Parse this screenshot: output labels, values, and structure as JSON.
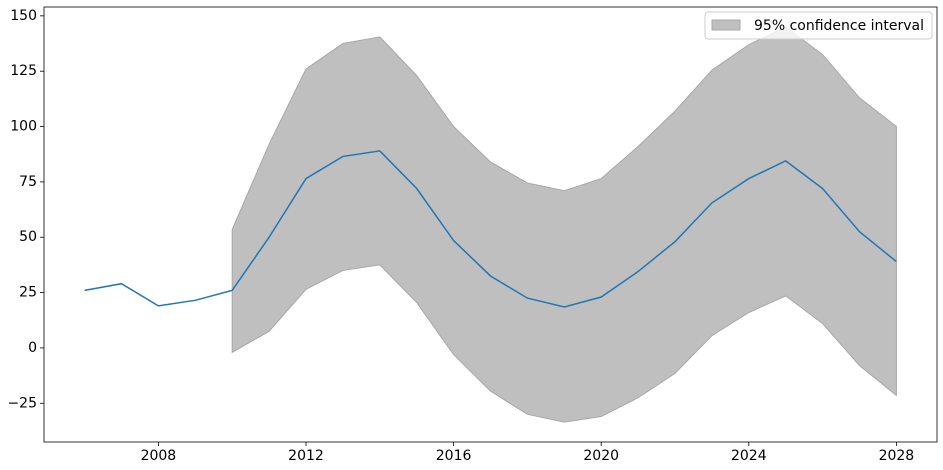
{
  "chart_data": {
    "type": "line",
    "x": [
      2006,
      2007,
      2008,
      2009,
      2010,
      2011,
      2012,
      2013,
      2014,
      2015,
      2016,
      2017,
      2018,
      2019,
      2020,
      2021,
      2022,
      2023,
      2024,
      2025,
      2026,
      2027,
      2028
    ],
    "series": [
      {
        "color": "#1f77b4",
        "values": [
          26,
          29,
          19,
          21.5,
          26,
          50,
          76.5,
          86.5,
          89,
          72,
          48.5,
          32.5,
          22.5,
          18.5,
          23,
          34.5,
          48,
          65.5,
          76.5,
          84.5,
          72,
          52.5,
          39
        ]
      }
    ],
    "band": {
      "name": "95% confidence interval",
      "color": "#bfbfbf",
      "lower": [
        null,
        null,
        null,
        null,
        -2,
        7.5,
        26.5,
        35,
        37.5,
        20.5,
        -3,
        -19.5,
        -30,
        -33.5,
        -31,
        -22.5,
        -11.5,
        5.5,
        16,
        23.5,
        11,
        -8,
        -21.5
      ],
      "upper": [
        null,
        null,
        null,
        null,
        53.5,
        92,
        126,
        137.5,
        140.5,
        123,
        100,
        84,
        74.5,
        71,
        76.5,
        91,
        107,
        125.5,
        137,
        145,
        132.5,
        113,
        100
      ]
    },
    "xlim": [
      2004.9,
      2029.1
    ],
    "xticks": [
      2008,
      2012,
      2016,
      2020,
      2024,
      2028
    ],
    "ylim": [
      -42.5,
      154
    ],
    "yticks": [
      {
        "value": -25,
        "label": "−25"
      },
      0,
      25,
      50,
      75,
      100,
      125,
      150
    ],
    "legend": "upper right"
  }
}
